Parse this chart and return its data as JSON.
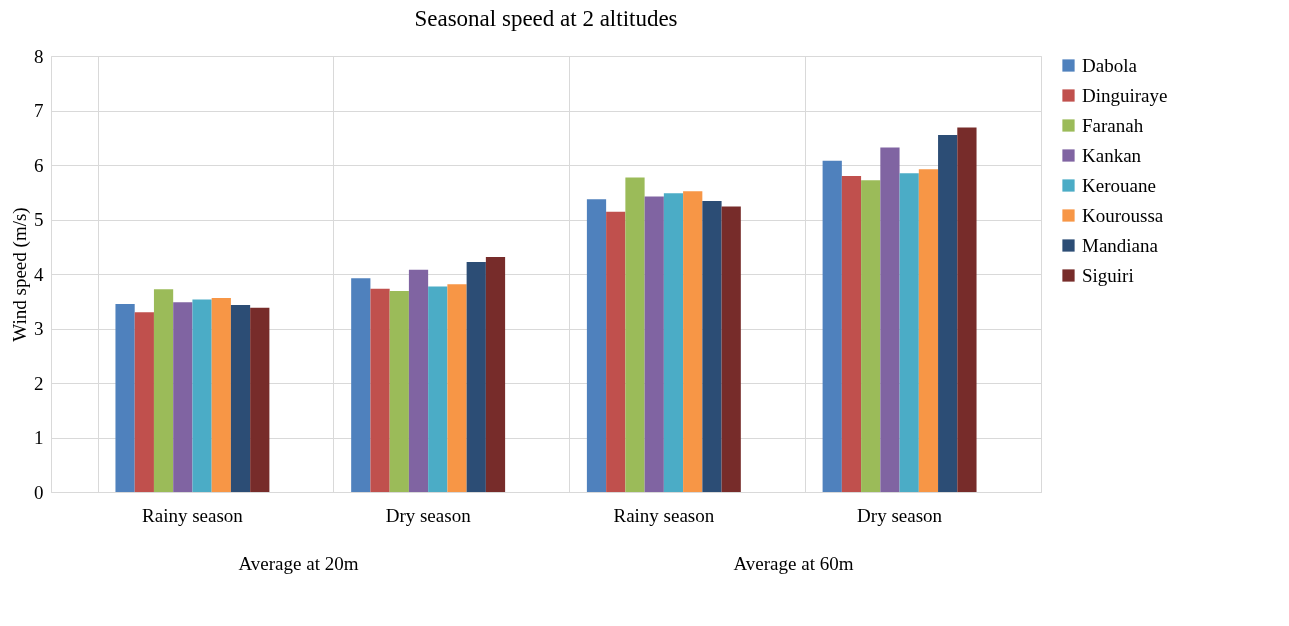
{
  "chart_data": {
    "type": "bar",
    "title": "Seasonal speed at 2 altitudes",
    "ylabel": "Wind speed (m/s)",
    "categories": [
      "Rainy season",
      "Dry season",
      "Rainy season",
      "Dry season"
    ],
    "annotations": [
      "Average at 20m",
      "Average at 60m"
    ],
    "series": [
      {
        "name": "Dabola",
        "color": "#4f81bd",
        "values": [
          3.45,
          3.92,
          5.37,
          6.08
        ]
      },
      {
        "name": "Dinguiraye",
        "color": "#c0504d",
        "values": [
          3.3,
          3.73,
          5.14,
          5.8
        ]
      },
      {
        "name": "Faranah",
        "color": "#9bbb59",
        "values": [
          3.72,
          3.69,
          5.77,
          5.72
        ]
      },
      {
        "name": "Kankan",
        "color": "#8064a2",
        "values": [
          3.48,
          4.08,
          5.42,
          6.32
        ]
      },
      {
        "name": "Kerouane",
        "color": "#4bacc6",
        "values": [
          3.53,
          3.77,
          5.48,
          5.85
        ]
      },
      {
        "name": "Kouroussa",
        "color": "#f79646",
        "values": [
          3.56,
          3.81,
          5.52,
          5.92
        ]
      },
      {
        "name": "Mandiana",
        "color": "#2c4d75",
        "values": [
          3.43,
          4.22,
          5.34,
          6.55
        ]
      },
      {
        "name": "Siguiri",
        "color": "#772c2a",
        "values": [
          3.38,
          4.31,
          5.24,
          6.69
        ]
      }
    ],
    "ylim": [
      0,
      8
    ],
    "yticks": [
      0,
      1,
      2,
      3,
      4,
      5,
      6,
      7,
      8
    ],
    "grid": true,
    "legend": "right"
  }
}
